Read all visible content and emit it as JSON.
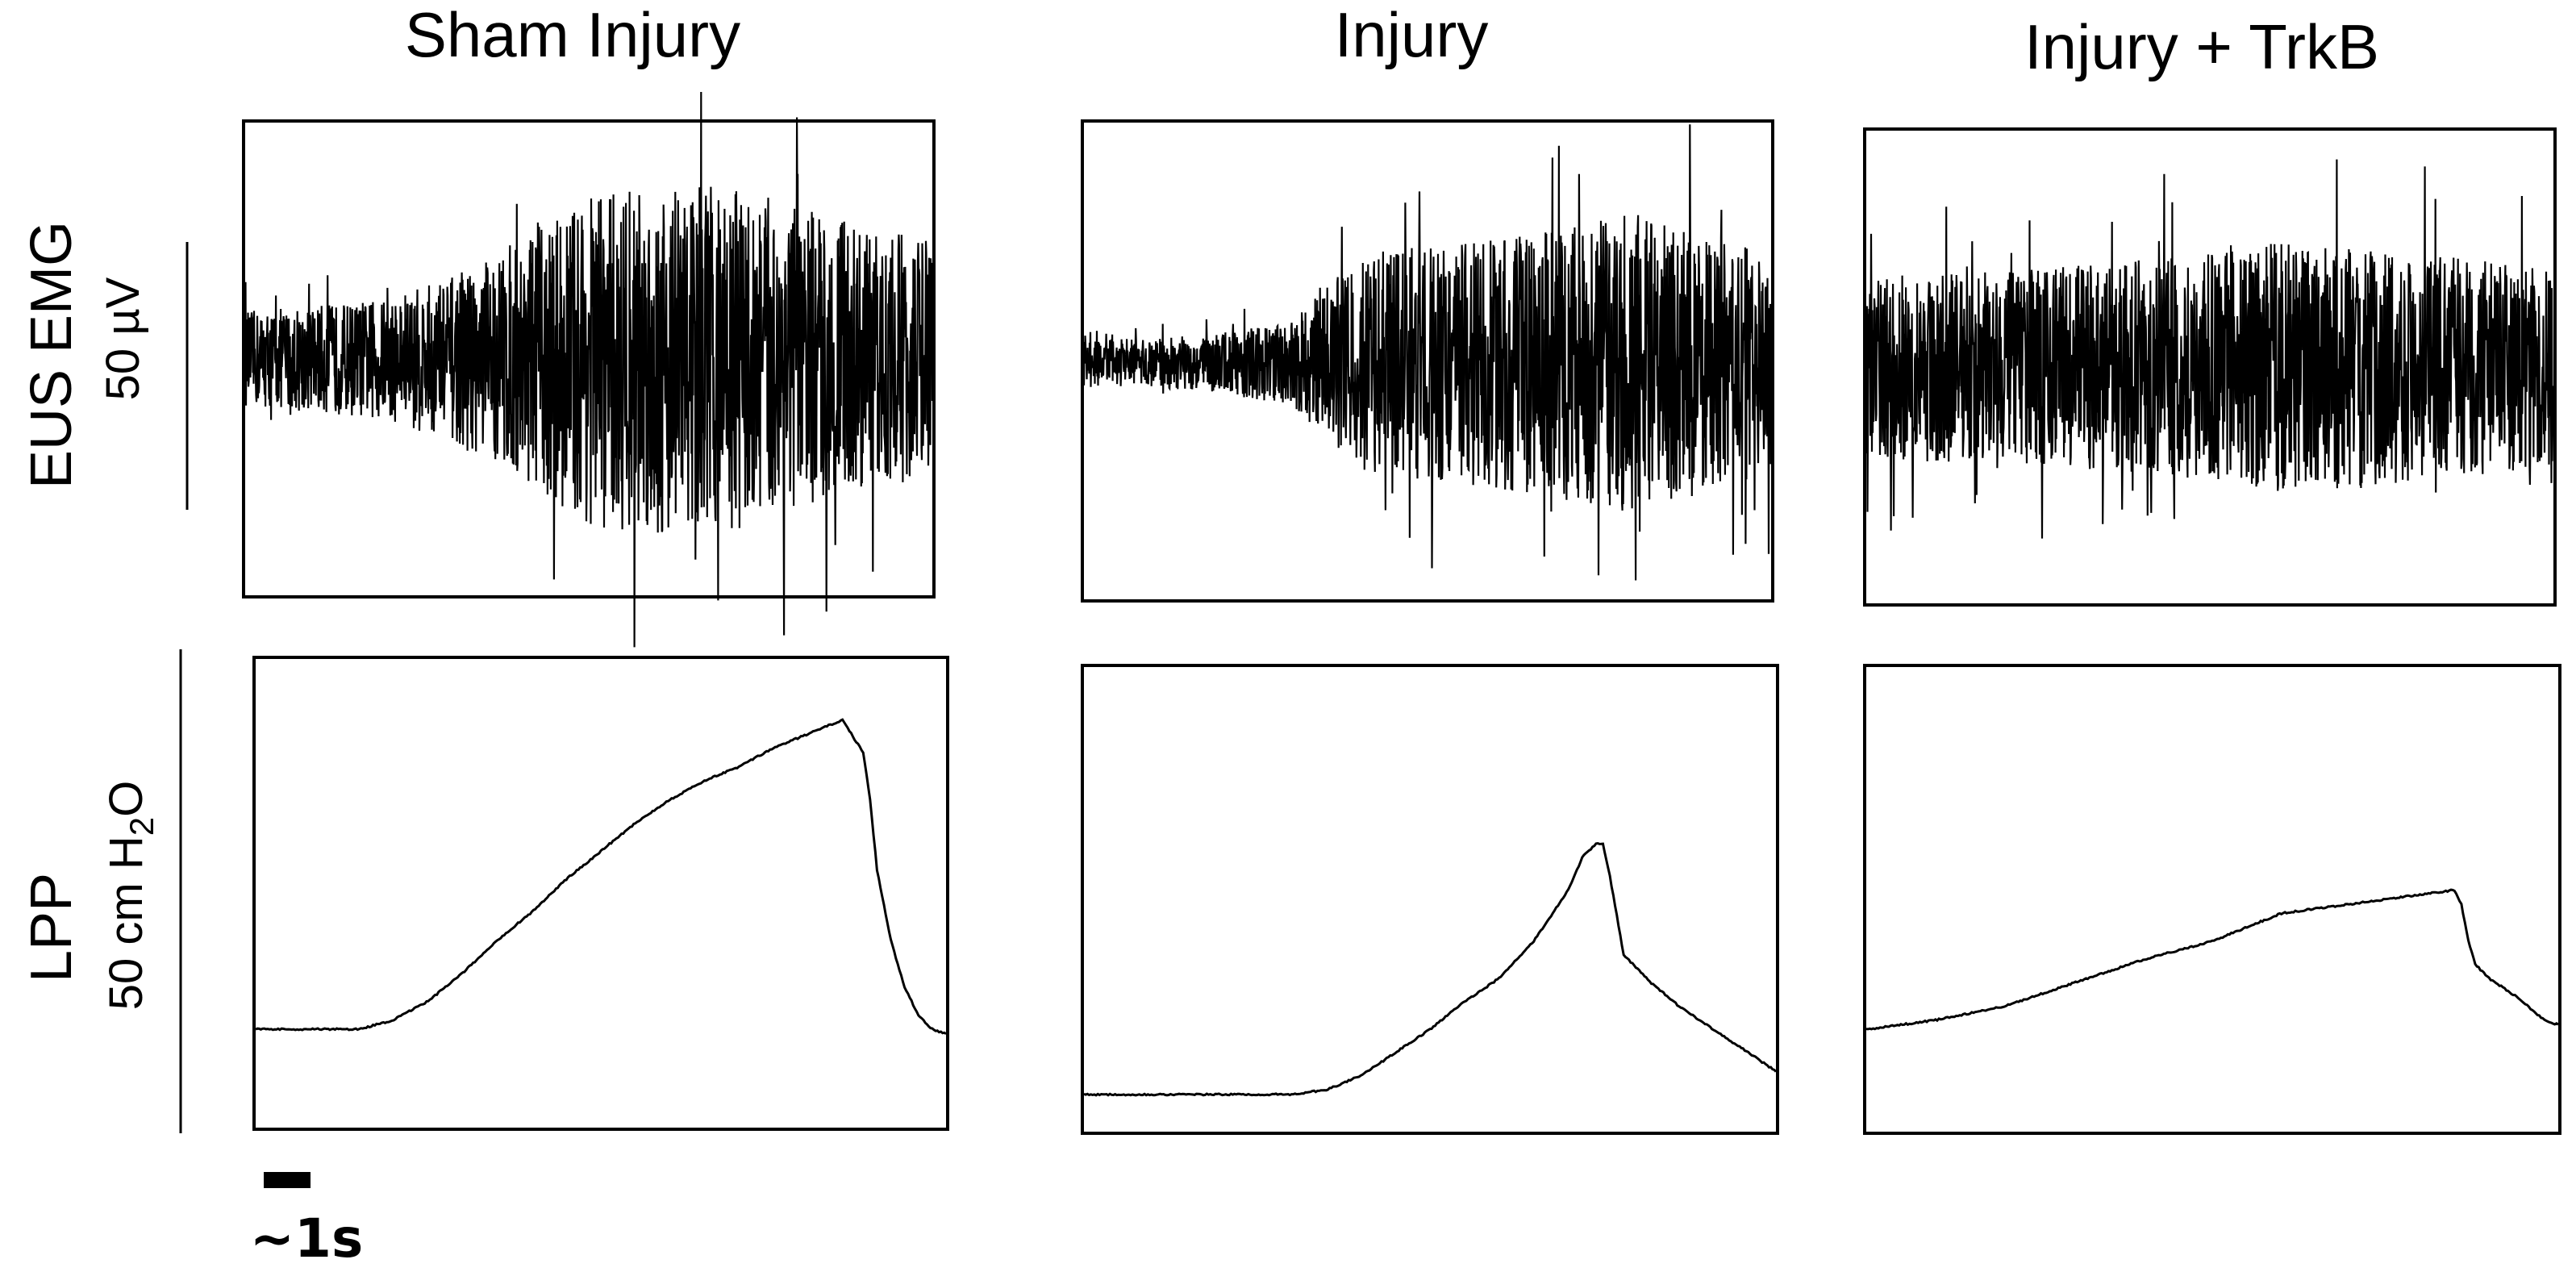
{
  "figure": {
    "row_labels": [
      "EUS EMG",
      "LPP"
    ],
    "emg_scale_label": "50 µV",
    "lpp_scale_label_prefix": "50 cm H",
    "lpp_scale_label_subscript": "2",
    "lpp_scale_label_suffix": "O",
    "time_scale_label": "~1s",
    "colors": {
      "trace": "#000000",
      "frame": "#000000",
      "background": "#ffffff"
    }
  },
  "chart_data": [
    {
      "type": "line",
      "title": "Sham Injury",
      "xlabel": "",
      "ylabel": "EUS EMG",
      "scale_bar": "50 µV",
      "x": [
        0,
        1,
        2,
        3,
        4,
        5,
        6,
        7,
        8,
        9,
        10
      ],
      "series": [
        {
          "values": [
            0.8,
            0.9,
            1.0,
            1.4,
            2.0,
            2.8,
            3.0,
            2.9,
            2.6,
            2.2,
            2.0
          ]
        }
      ],
      "ylim": [
        -4,
        4
      ]
    },
    {
      "type": "line",
      "title": "Injury",
      "xlabel": "",
      "ylabel": "EUS EMG",
      "scale_bar": "50 µV",
      "x": [
        0,
        1,
        2,
        3,
        4,
        5,
        6,
        7,
        8,
        9,
        10
      ],
      "series": [
        {
          "values": [
            0.4,
            0.4,
            0.5,
            0.7,
            1.8,
            2.0,
            2.1,
            2.3,
            2.5,
            2.2,
            1.8
          ]
        }
      ],
      "ylim": [
        -4,
        4
      ]
    },
    {
      "type": "line",
      "title": "Injury + TrkB",
      "xlabel": "",
      "ylabel": "EUS EMG",
      "scale_bar": "50 µV",
      "x": [
        0,
        1,
        2,
        3,
        4,
        5,
        6,
        7,
        8,
        9,
        10
      ],
      "series": [
        {
          "values": [
            1.5,
            1.6,
            1.6,
            1.7,
            1.8,
            1.9,
            2.1,
            2.1,
            1.9,
            1.8,
            1.7
          ]
        }
      ],
      "ylim": [
        -4,
        4
      ]
    },
    {
      "type": "line",
      "title": "",
      "xlabel": "",
      "ylabel": "LPP",
      "scale_bar": "50 cm H2O",
      "x": [
        0,
        10,
        15,
        20,
        25,
        30,
        35,
        40,
        45,
        50,
        55,
        60,
        65,
        70,
        75,
        80,
        85,
        88,
        89,
        90,
        92,
        94,
        96,
        98,
        100
      ],
      "series": [
        {
          "values": [
            21,
            21,
            21,
            23,
            27,
            33,
            40,
            46,
            53,
            59,
            65,
            70,
            74,
            77,
            81,
            84,
            87,
            80,
            70,
            55,
            40,
            30,
            24,
            21,
            20
          ]
        }
      ],
      "ylim": [
        0,
        100
      ]
    },
    {
      "type": "line",
      "title": "",
      "xlabel": "",
      "ylabel": "LPP",
      "scale_bar": "50 cm H2O",
      "x": [
        0,
        10,
        20,
        30,
        35,
        40,
        45,
        50,
        55,
        60,
        65,
        70,
        72,
        74,
        75,
        76,
        78,
        82,
        86,
        90,
        95,
        100
      ],
      "series": [
        {
          "values": [
            8,
            8,
            8,
            8,
            9,
            12,
            17,
            22,
            28,
            33,
            41,
            52,
            59,
            62,
            62,
            55,
            38,
            32,
            27,
            23,
            18,
            13
          ]
        }
      ],
      "ylim": [
        0,
        100
      ]
    },
    {
      "type": "line",
      "title": "",
      "xlabel": "",
      "ylabel": "LPP",
      "scale_bar": "50 cm H2O",
      "x": [
        0,
        10,
        20,
        30,
        40,
        50,
        60,
        70,
        80,
        85,
        86,
        87,
        88,
        90,
        94,
        98,
        100
      ],
      "series": [
        {
          "values": [
            22,
            24,
            27,
            32,
            37,
            41,
            47,
            49,
            51,
            52,
            49,
            41,
            36,
            33,
            29,
            24,
            23
          ]
        }
      ],
      "ylim": [
        0,
        100
      ]
    }
  ]
}
